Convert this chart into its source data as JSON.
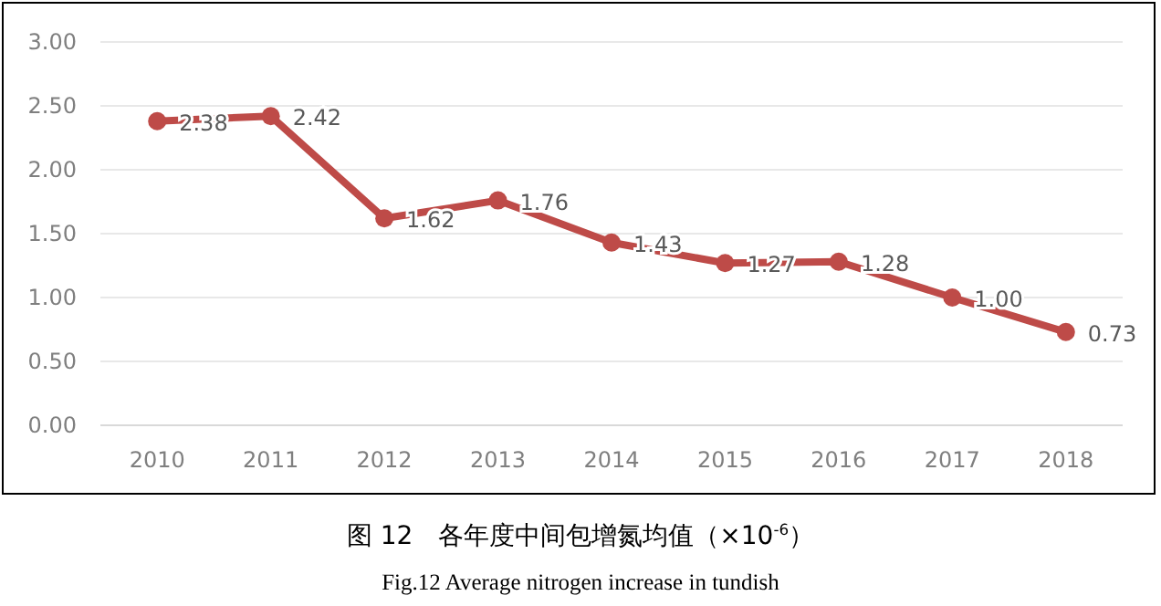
{
  "chart_data": {
    "type": "line",
    "title": "图 12　各年度中间包增氮均值（×10$^{-6}$）",
    "subtitle": "Fig.12 Average nitrogen increase in tundish",
    "categories": [
      "2010",
      "2011",
      "2012",
      "2013",
      "2014",
      "2015",
      "2016",
      "2017",
      "2018"
    ],
    "series": [
      {
        "color": "#be4b48",
        "values": [
          2.38,
          2.42,
          1.62,
          1.76,
          1.43,
          1.27,
          1.28,
          1.0,
          0.73
        ],
        "value_labels": [
          "2.38",
          "2.42",
          "1.62",
          "1.76",
          "1.43",
          "1.27",
          "1.28",
          "1.00",
          "0.73"
        ]
      }
    ],
    "ylim": [
      0,
      3
    ],
    "yticks": [
      {
        "value": 0,
        "label": "0.00"
      },
      {
        "value": 0.5,
        "label": "0.50"
      },
      {
        "value": 1,
        "label": "1.00"
      },
      {
        "value": 1.5,
        "label": "1.50"
      },
      {
        "value": 2,
        "label": "2.00"
      },
      {
        "value": 2.5,
        "label": "2.50"
      },
      {
        "value": 3,
        "label": "3.00"
      }
    ],
    "grid": "y",
    "marker": "circle",
    "line_style": "solid"
  }
}
